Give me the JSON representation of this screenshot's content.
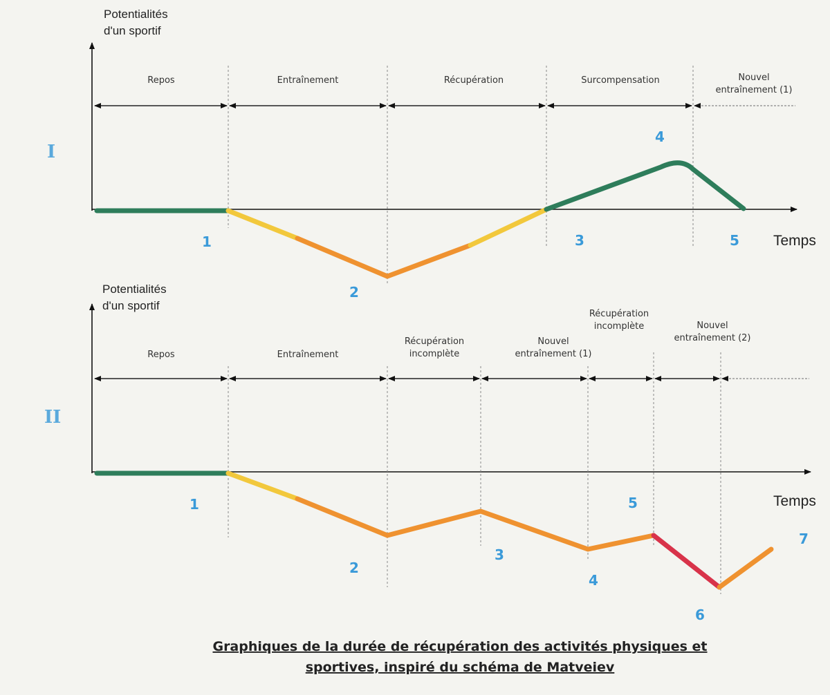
{
  "colors": {
    "rest": "#2e7d5b",
    "light_fatigue": "#f2c83c",
    "fatigue": "#ef9230",
    "over_fatigue": "#d8334a",
    "numbers": "#3a9ad9"
  },
  "diagram_1": {
    "roman": "I",
    "y_label": [
      "Potentialités",
      "d'un sportif"
    ],
    "x_label": "Temps",
    "phases": [
      "Repos",
      "Entraînement",
      "Récupération",
      "Surcompensation",
      [
        "Nouvel",
        "entraînement (1)"
      ]
    ],
    "points": [
      "1",
      "2",
      "3",
      "4",
      "5"
    ]
  },
  "diagram_2": {
    "roman": "II",
    "y_label": [
      "Potentialités",
      "d'un sportif"
    ],
    "x_label": "Temps",
    "phases": [
      "Repos",
      "Entraînement",
      [
        "Récupération",
        "incomplète"
      ],
      [
        "Nouvel",
        "entraînement (1)"
      ],
      [
        "Récupération",
        "incomplète"
      ],
      [
        "Nouvel",
        "entraînement (2)"
      ]
    ],
    "points": [
      "1",
      "2",
      "3",
      "4",
      "5",
      "6",
      "7"
    ]
  },
  "caption": [
    "Graphiques de la durée de récupération des activités physiques et",
    "sportives, inspiré du schéma de Matveiev"
  ]
}
